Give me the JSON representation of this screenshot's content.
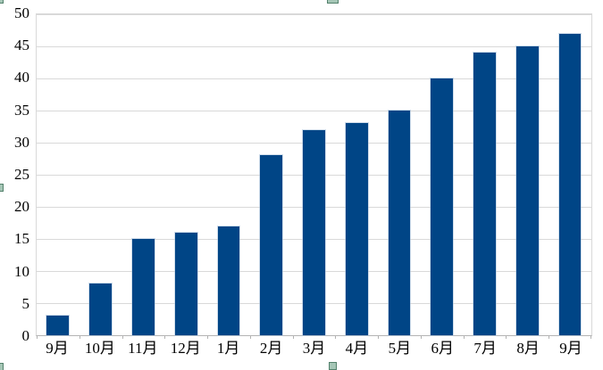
{
  "chart_data": {
    "type": "bar",
    "categories": [
      "9月",
      "10月",
      "11月",
      "12月",
      "1月",
      "2月",
      "3月",
      "4月",
      "5月",
      "6月",
      "7月",
      "8月",
      "9月"
    ],
    "values": [
      3,
      8,
      15,
      16,
      17,
      28,
      32,
      33,
      35,
      40,
      44,
      45,
      47
    ],
    "title": "",
    "xlabel": "",
    "ylabel": "",
    "ylim": [
      0,
      50
    ],
    "ytick_step": 5,
    "ytick_labels": [
      "0",
      "5",
      "10",
      "15",
      "20",
      "25",
      "30",
      "35",
      "40",
      "45",
      "50"
    ],
    "grid": "horizontal",
    "legend": "none",
    "series_name": ""
  },
  "colors": {
    "background": "#ffffff",
    "bar": "#004586",
    "gridline": "#d9d9d9",
    "plot_border": "#d9d9d9",
    "axis_line": "#b3b3b3",
    "tick": "#b3b3b3",
    "label_text": "#000000",
    "handle_fill": "#a5c6b6",
    "handle_border": "#53816c"
  },
  "selection": {
    "state": "chart-object-selected",
    "handles": [
      "top-left",
      "top-center",
      "left-center",
      "bottom-left",
      "bottom-center"
    ]
  }
}
